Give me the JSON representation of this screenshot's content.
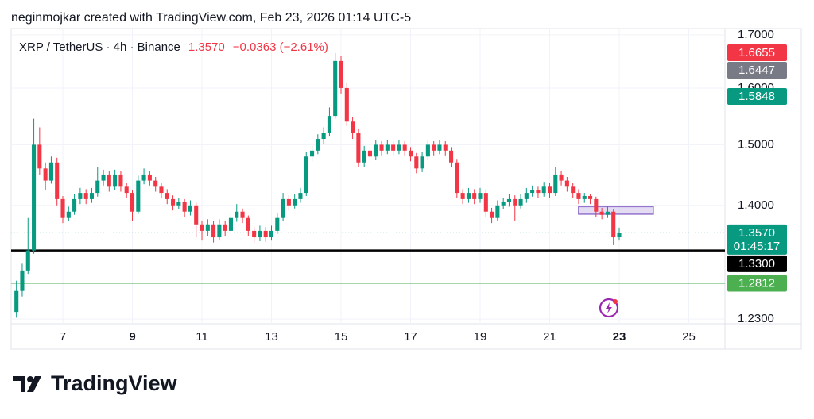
{
  "header": {
    "credit": "neginmojkar created with TradingView.com, Feb 23, 2026 01:14 UTC-5"
  },
  "chart_data": {
    "type": "candlestick",
    "title": "XRP / TetherUS · 4h · Binance",
    "last": "1.3570",
    "change": "−0.0363 (−2.61%)",
    "up_color": "#089981",
    "down_color": "#f23645",
    "x": [
      5.667,
      5.833,
      6,
      6.167,
      6.333,
      6.5,
      6.667,
      6.833,
      7,
      7.167,
      7.333,
      7.5,
      7.667,
      7.833,
      8,
      8.167,
      8.333,
      8.5,
      8.667,
      8.833,
      9,
      9.167,
      9.333,
      9.5,
      9.667,
      9.833,
      10,
      10.167,
      10.333,
      10.5,
      10.667,
      10.833,
      11,
      11.167,
      11.333,
      11.5,
      11.667,
      11.833,
      12,
      12.167,
      12.333,
      12.5,
      12.667,
      12.833,
      13,
      13.167,
      13.333,
      13.5,
      13.667,
      13.833,
      14,
      14.167,
      14.333,
      14.5,
      14.667,
      14.833,
      15,
      15.167,
      15.333,
      15.5,
      15.667,
      15.833,
      16,
      16.167,
      16.333,
      16.5,
      16.667,
      16.833,
      17,
      17.167,
      17.333,
      17.5,
      17.667,
      17.833,
      18,
      18.167,
      18.333,
      18.5,
      18.667,
      18.833,
      19,
      19.167,
      19.333,
      19.5,
      19.667,
      19.833,
      20,
      20.167,
      20.333,
      20.5,
      20.667,
      20.833,
      21,
      21.167,
      21.333,
      21.5,
      21.667,
      21.833,
      22,
      22.167,
      22.333,
      22.5,
      22.667,
      22.833,
      23
    ],
    "open": [
      1.24,
      1.27,
      1.3,
      1.33,
      1.5,
      1.46,
      1.44,
      1.47,
      1.41,
      1.38,
      1.39,
      1.41,
      1.42,
      1.41,
      1.42,
      1.44,
      1.45,
      1.43,
      1.45,
      1.43,
      1.42,
      1.39,
      1.44,
      1.45,
      1.44,
      1.43,
      1.42,
      1.41,
      1.4,
      1.405,
      1.39,
      1.4,
      1.37,
      1.36,
      1.37,
      1.35,
      1.37,
      1.36,
      1.38,
      1.39,
      1.38,
      1.36,
      1.35,
      1.36,
      1.35,
      1.36,
      1.38,
      1.41,
      1.4,
      1.41,
      1.42,
      1.48,
      1.49,
      1.51,
      1.52,
      1.55,
      1.65,
      1.6,
      1.54,
      1.52,
      1.47,
      1.49,
      1.48,
      1.5,
      1.49,
      1.5,
      1.49,
      1.5,
      1.49,
      1.48,
      1.46,
      1.48,
      1.5,
      1.49,
      1.5,
      1.49,
      1.47,
      1.42,
      1.41,
      1.42,
      1.41,
      1.42,
      1.39,
      1.38,
      1.4,
      1.405,
      1.41,
      1.4,
      1.41,
      1.42,
      1.425,
      1.42,
      1.43,
      1.42,
      1.45,
      1.44,
      1.43,
      1.42,
      1.41,
      1.415,
      1.41,
      1.39,
      1.385,
      1.39,
      1.35
    ],
    "high": [
      1.285,
      1.31,
      1.38,
      1.545,
      1.53,
      1.47,
      1.48,
      1.478,
      1.415,
      1.398,
      1.418,
      1.428,
      1.426,
      1.428,
      1.462,
      1.458,
      1.456,
      1.458,
      1.456,
      1.436,
      1.425,
      1.448,
      1.46,
      1.456,
      1.446,
      1.436,
      1.426,
      1.416,
      1.412,
      1.41,
      1.408,
      1.404,
      1.376,
      1.378,
      1.375,
      1.378,
      1.376,
      1.388,
      1.402,
      1.395,
      1.384,
      1.366,
      1.368,
      1.366,
      1.368,
      1.388,
      1.42,
      1.416,
      1.418,
      1.428,
      1.488,
      1.498,
      1.518,
      1.53,
      1.565,
      1.665,
      1.66,
      1.61,
      1.548,
      1.528,
      1.498,
      1.496,
      1.508,
      1.506,
      1.508,
      1.506,
      1.508,
      1.506,
      1.496,
      1.486,
      1.488,
      1.508,
      1.506,
      1.508,
      1.506,
      1.496,
      1.476,
      1.426,
      1.428,
      1.426,
      1.428,
      1.426,
      1.396,
      1.408,
      1.412,
      1.418,
      1.416,
      1.418,
      1.428,
      1.432,
      1.43,
      1.438,
      1.436,
      1.462,
      1.456,
      1.446,
      1.436,
      1.426,
      1.42,
      1.418,
      1.414,
      1.396,
      1.398,
      1.394,
      1.365
    ],
    "low": [
      1.232,
      1.262,
      1.295,
      1.325,
      1.45,
      1.425,
      1.435,
      1.4,
      1.372,
      1.375,
      1.385,
      1.402,
      1.402,
      1.404,
      1.414,
      1.432,
      1.422,
      1.425,
      1.422,
      1.412,
      1.375,
      1.386,
      1.434,
      1.432,
      1.422,
      1.412,
      1.402,
      1.392,
      1.394,
      1.382,
      1.384,
      1.35,
      1.345,
      1.352,
      1.342,
      1.345,
      1.352,
      1.355,
      1.374,
      1.372,
      1.352,
      1.342,
      1.344,
      1.343,
      1.345,
      1.355,
      1.375,
      1.392,
      1.395,
      1.404,
      1.415,
      1.472,
      1.484,
      1.502,
      1.514,
      1.545,
      1.59,
      1.532,
      1.51,
      1.462,
      1.462,
      1.472,
      1.474,
      1.482,
      1.484,
      1.482,
      1.484,
      1.482,
      1.472,
      1.452,
      1.454,
      1.474,
      1.482,
      1.484,
      1.482,
      1.462,
      1.412,
      1.402,
      1.404,
      1.402,
      1.404,
      1.382,
      1.372,
      1.375,
      1.394,
      1.398,
      1.376,
      1.395,
      1.404,
      1.414,
      1.412,
      1.414,
      1.412,
      1.415,
      1.432,
      1.422,
      1.412,
      1.402,
      1.404,
      1.402,
      1.382,
      1.378,
      1.38,
      1.338,
      1.345
    ],
    "close": [
      1.27,
      1.3,
      1.33,
      1.5,
      1.46,
      1.44,
      1.47,
      1.41,
      1.38,
      1.39,
      1.41,
      1.42,
      1.41,
      1.42,
      1.44,
      1.45,
      1.43,
      1.45,
      1.43,
      1.42,
      1.39,
      1.44,
      1.45,
      1.44,
      1.43,
      1.42,
      1.41,
      1.4,
      1.405,
      1.39,
      1.4,
      1.37,
      1.36,
      1.37,
      1.35,
      1.37,
      1.36,
      1.38,
      1.39,
      1.38,
      1.36,
      1.35,
      1.36,
      1.35,
      1.36,
      1.38,
      1.41,
      1.4,
      1.41,
      1.42,
      1.48,
      1.49,
      1.51,
      1.52,
      1.55,
      1.65,
      1.6,
      1.54,
      1.52,
      1.47,
      1.49,
      1.48,
      1.5,
      1.49,
      1.5,
      1.49,
      1.5,
      1.49,
      1.48,
      1.46,
      1.48,
      1.5,
      1.49,
      1.5,
      1.49,
      1.47,
      1.42,
      1.41,
      1.42,
      1.41,
      1.42,
      1.39,
      1.38,
      1.4,
      1.405,
      1.41,
      1.4,
      1.41,
      1.42,
      1.425,
      1.42,
      1.43,
      1.42,
      1.45,
      1.44,
      1.43,
      1.42,
      1.41,
      1.415,
      1.41,
      1.39,
      1.385,
      1.39,
      1.35,
      1.357
    ],
    "xlim": [
      5.514,
      26.04
    ],
    "xticks": [
      7,
      9,
      11,
      13,
      15,
      17,
      19,
      21,
      23,
      25
    ],
    "bold_xticks": [
      9,
      23
    ],
    "ylim": [
      1.2235,
      1.7105
    ],
    "log_scale": true,
    "grid": true,
    "yticks": [
      {
        "value": 1.7,
        "label": "1.7000"
      },
      {
        "value": 1.6,
        "label": "1.6000"
      },
      {
        "value": 1.5,
        "label": "1.5000"
      },
      {
        "value": 1.4,
        "label": "1.4000"
      },
      {
        "value": 1.23,
        "label": "1.2300"
      }
    ],
    "lines": [
      {
        "value": 1.357,
        "color": "#089981",
        "style": "dotted"
      },
      {
        "value": 1.33,
        "color": "#000000",
        "style": "solid"
      },
      {
        "value": 1.2812,
        "color": "#4caf50",
        "style": "solid"
      }
    ],
    "price_labels": [
      {
        "value": 1.6655,
        "label": "1.6655",
        "color": "#f23645"
      },
      {
        "value": 1.6447,
        "label": "1.6447",
        "color": "#787b86"
      },
      {
        "value": 1.5848,
        "label": "1.5848",
        "color": "#089981"
      },
      {
        "value": 1.357,
        "label": "1.3570",
        "color": "#089981",
        "countdown": "01:45:17"
      },
      {
        "value": 1.33,
        "label": "1.3300",
        "color": "#000000"
      },
      {
        "value": 1.2812,
        "label": "1.2812",
        "color": "#4caf50"
      }
    ],
    "zone": {
      "x0": 21.83,
      "x1": 23.98,
      "low": 1.386,
      "high": 1.398,
      "color": "#9575cd"
    }
  },
  "footer": {
    "brand": "TradingView"
  }
}
